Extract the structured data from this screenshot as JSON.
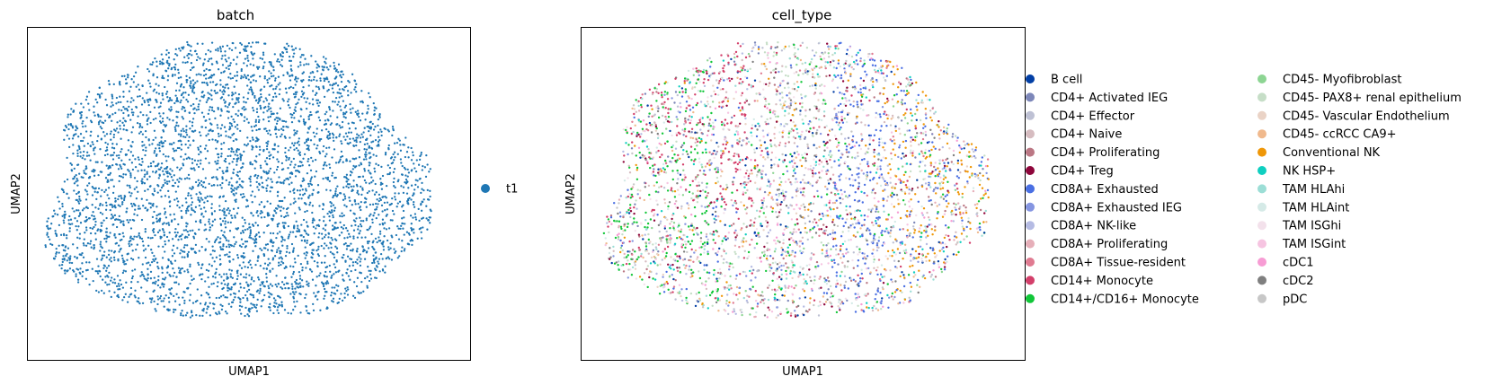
{
  "chart_data": [
    {
      "type": "scatter",
      "title": "batch",
      "xlabel": "UMAP1",
      "ylabel": "UMAP2",
      "grid": false,
      "ticks": false,
      "legend": {
        "placement": "right",
        "entries": [
          {
            "name": "t1",
            "color": "#1f77b4"
          }
        ]
      }
    },
    {
      "type": "scatter",
      "title": "cell_type",
      "xlabel": "UMAP1",
      "ylabel": "UMAP2",
      "grid": false,
      "ticks": false,
      "legend": {
        "placement": "right",
        "columns": 2,
        "entries": [
          {
            "name": "B cell",
            "color": "#023fa5"
          },
          {
            "name": "CD4+ Activated IEG",
            "color": "#7d87b9"
          },
          {
            "name": "CD4+ Effector",
            "color": "#bec1d4"
          },
          {
            "name": "CD4+ Naive",
            "color": "#d6bcc0"
          },
          {
            "name": "CD4+ Proliferating",
            "color": "#bb7784"
          },
          {
            "name": "CD4+ Treg",
            "color": "#8e063b"
          },
          {
            "name": "CD8A+ Exhausted",
            "color": "#4a6fe3"
          },
          {
            "name": "CD8A+ Exhausted IEG",
            "color": "#8595e1"
          },
          {
            "name": "CD8A+ NK-like",
            "color": "#b5bbe3"
          },
          {
            "name": "CD8A+ Proliferating",
            "color": "#e6afb9"
          },
          {
            "name": "CD8A+ Tissue-resident",
            "color": "#e07b91"
          },
          {
            "name": "CD14+ Monocyte",
            "color": "#d33f6a"
          },
          {
            "name": "CD14+/CD16+ Monocyte",
            "color": "#11c638"
          },
          {
            "name": "CD45- Myofibroblast",
            "color": "#8dd593"
          },
          {
            "name": "CD45- PAX8+ renal epithelium",
            "color": "#c6dec7"
          },
          {
            "name": "CD45- Vascular Endothelium",
            "color": "#ead3c6"
          },
          {
            "name": "CD45- ccRCC CA9+",
            "color": "#f0b98d"
          },
          {
            "name": "Conventional NK",
            "color": "#ef9708"
          },
          {
            "name": "NK HSP+",
            "color": "#0fcfc0"
          },
          {
            "name": "TAM HLAhi",
            "color": "#9cded6"
          },
          {
            "name": "TAM HLAint",
            "color": "#d5eae7"
          },
          {
            "name": "TAM ISGhi",
            "color": "#f3e1eb"
          },
          {
            "name": "TAM ISGint",
            "color": "#f6c4e1"
          },
          {
            "name": "cDC1",
            "color": "#f79cd4"
          },
          {
            "name": "cDC2",
            "color": "#7f7f7f"
          },
          {
            "name": "pDC",
            "color": "#c7c7c7"
          }
        ]
      }
    }
  ]
}
